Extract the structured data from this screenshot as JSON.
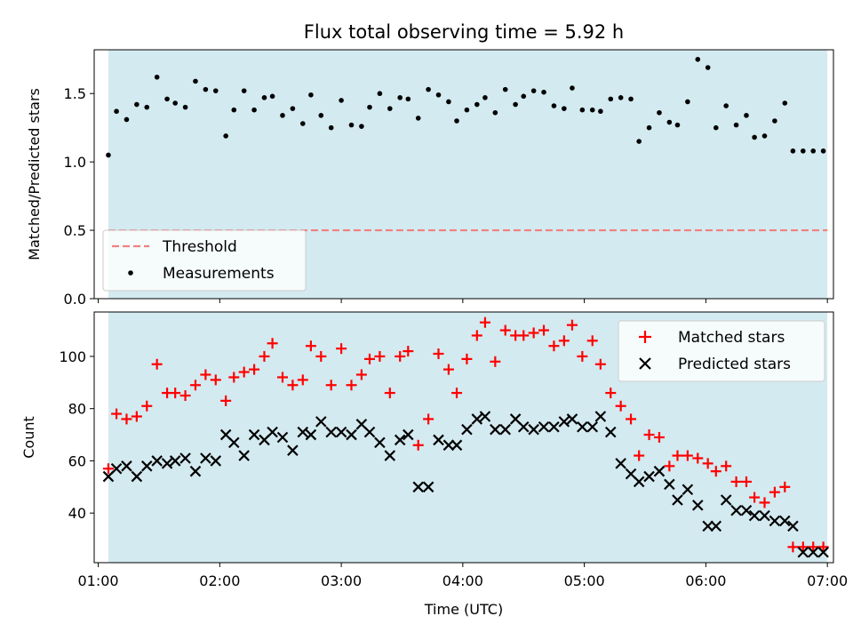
{
  "chart_data": [
    {
      "type": "scatter",
      "title": "Flux total observing time = 5.92 h",
      "xlabel": "",
      "ylabel": "Matched/Predicted stars",
      "xlim": [
        "00:58",
        "07:03"
      ],
      "ylim": [
        0.0,
        1.82
      ],
      "yticks": [
        0.0,
        0.5,
        1.0,
        1.5
      ],
      "xticks": [
        "01:00",
        "02:00",
        "03:00",
        "04:00",
        "05:00",
        "06:00",
        "07:00"
      ],
      "observing_window": {
        "start": "01:05",
        "end": "07:00",
        "color": "#d3eaf0"
      },
      "threshold": {
        "name": "Threshold",
        "value": 0.5,
        "color": "#f08080",
        "style": "dashed"
      },
      "legend": {
        "position": "lower-left",
        "entries": [
          "Threshold",
          "Measurements"
        ]
      },
      "series": [
        {
          "name": "Measurements",
          "marker": "dot",
          "color": "#000000",
          "x": [
            "01:05",
            "01:09",
            "01:14",
            "01:19",
            "01:24",
            "01:29",
            "01:34",
            "01:38",
            "01:43",
            "01:48",
            "01:53",
            "01:58",
            "02:03",
            "02:07",
            "02:12",
            "02:17",
            "02:22",
            "02:26",
            "02:31",
            "02:36",
            "02:41",
            "02:45",
            "02:50",
            "02:55",
            "03:00",
            "03:05",
            "03:10",
            "03:14",
            "03:19",
            "03:24",
            "03:29",
            "03:33",
            "03:38",
            "03:43",
            "03:48",
            "03:53",
            "03:57",
            "04:02",
            "04:07",
            "04:11",
            "04:16",
            "04:21",
            "04:26",
            "04:30",
            "04:35",
            "04:40",
            "04:45",
            "04:50",
            "04:54",
            "04:59",
            "05:04",
            "05:08",
            "05:13",
            "05:18",
            "05:23",
            "05:27",
            "05:32",
            "05:37",
            "05:42",
            "05:46",
            "05:51",
            "05:56",
            "06:01",
            "06:05",
            "06:10",
            "06:15",
            "06:20",
            "06:24",
            "06:29",
            "06:34",
            "06:39",
            "06:43",
            "06:48",
            "06:53",
            "06:58"
          ],
          "y": [
            1.05,
            1.37,
            1.31,
            1.42,
            1.4,
            1.62,
            1.46,
            1.43,
            1.4,
            1.59,
            1.53,
            1.52,
            1.19,
            1.38,
            1.52,
            1.38,
            1.47,
            1.48,
            1.34,
            1.39,
            1.28,
            1.49,
            1.34,
            1.25,
            1.45,
            1.27,
            1.26,
            1.4,
            1.5,
            1.39,
            1.47,
            1.46,
            1.32,
            1.53,
            1.49,
            1.44,
            1.3,
            1.38,
            1.42,
            1.47,
            1.36,
            1.53,
            1.42,
            1.48,
            1.52,
            1.51,
            1.41,
            1.39,
            1.54,
            1.38,
            1.38,
            1.37,
            1.46,
            1.47,
            1.46,
            1.15,
            1.25,
            1.36,
            1.29,
            1.27,
            1.44,
            1.75,
            1.69,
            1.25,
            1.41,
            1.27,
            1.34,
            1.18,
            1.19,
            1.3,
            1.43,
            1.08,
            1.08,
            1.08,
            1.08
          ]
        }
      ]
    },
    {
      "type": "scatter",
      "title": "",
      "xlabel": "Time (UTC)",
      "ylabel": "Count",
      "xlim": [
        "00:58",
        "07:03"
      ],
      "ylim": [
        21,
        117
      ],
      "yticks": [
        40,
        60,
        80,
        100
      ],
      "xticks": [
        "01:00",
        "02:00",
        "03:00",
        "04:00",
        "05:00",
        "06:00",
        "07:00"
      ],
      "observing_window": {
        "start": "01:05",
        "end": "07:00",
        "color": "#d3eaf0"
      },
      "legend": {
        "position": "upper-right",
        "entries": [
          "Matched stars",
          "Predicted stars"
        ]
      },
      "series": [
        {
          "name": "Matched stars",
          "marker": "plus",
          "color": "#ff0000",
          "x": [
            "01:05",
            "01:09",
            "01:14",
            "01:19",
            "01:24",
            "01:29",
            "01:34",
            "01:38",
            "01:43",
            "01:48",
            "01:53",
            "01:58",
            "02:03",
            "02:07",
            "02:12",
            "02:17",
            "02:22",
            "02:26",
            "02:31",
            "02:36",
            "02:41",
            "02:45",
            "02:50",
            "02:55",
            "03:00",
            "03:05",
            "03:10",
            "03:14",
            "03:19",
            "03:24",
            "03:29",
            "03:33",
            "03:38",
            "03:43",
            "03:48",
            "03:53",
            "03:57",
            "04:02",
            "04:07",
            "04:11",
            "04:16",
            "04:21",
            "04:26",
            "04:30",
            "04:35",
            "04:40",
            "04:45",
            "04:50",
            "04:54",
            "04:59",
            "05:04",
            "05:08",
            "05:13",
            "05:18",
            "05:23",
            "05:27",
            "05:32",
            "05:37",
            "05:42",
            "05:46",
            "05:51",
            "05:56",
            "06:01",
            "06:05",
            "06:10",
            "06:15",
            "06:20",
            "06:24",
            "06:29",
            "06:34",
            "06:39",
            "06:43",
            "06:48",
            "06:53",
            "06:58"
          ],
          "y": [
            57,
            78,
            76,
            77,
            81,
            97,
            86,
            86,
            85,
            89,
            93,
            91,
            83,
            92,
            94,
            95,
            100,
            105,
            92,
            89,
            91,
            104,
            100,
            89,
            103,
            89,
            93,
            99,
            100,
            86,
            100,
            102,
            66,
            76,
            101,
            95,
            86,
            99,
            108,
            113,
            98,
            110,
            108,
            108,
            109,
            110,
            104,
            106,
            112,
            100,
            106,
            97,
            86,
            81,
            76,
            62,
            70,
            69,
            58,
            62,
            62,
            61,
            59,
            56,
            58,
            52,
            52,
            46,
            44,
            48,
            50,
            27,
            27,
            27,
            27
          ]
        },
        {
          "name": "Predicted stars",
          "marker": "x",
          "color": "#000000",
          "x": [
            "01:05",
            "01:09",
            "01:14",
            "01:19",
            "01:24",
            "01:29",
            "01:34",
            "01:38",
            "01:43",
            "01:48",
            "01:53",
            "01:58",
            "02:03",
            "02:07",
            "02:12",
            "02:17",
            "02:22",
            "02:26",
            "02:31",
            "02:36",
            "02:41",
            "02:45",
            "02:50",
            "02:55",
            "03:00",
            "03:05",
            "03:10",
            "03:14",
            "03:19",
            "03:24",
            "03:29",
            "03:33",
            "03:38",
            "03:43",
            "03:48",
            "03:53",
            "03:57",
            "04:02",
            "04:07",
            "04:11",
            "04:16",
            "04:21",
            "04:26",
            "04:30",
            "04:35",
            "04:40",
            "04:45",
            "04:50",
            "04:54",
            "04:59",
            "05:04",
            "05:08",
            "05:13",
            "05:18",
            "05:23",
            "05:27",
            "05:32",
            "05:37",
            "05:42",
            "05:46",
            "05:51",
            "05:56",
            "06:01",
            "06:05",
            "06:10",
            "06:15",
            "06:20",
            "06:24",
            "06:29",
            "06:34",
            "06:39",
            "06:43",
            "06:48",
            "06:53",
            "06:58"
          ],
          "y": [
            54,
            57,
            58,
            54,
            58,
            60,
            59,
            60,
            61,
            56,
            61,
            60,
            70,
            67,
            62,
            70,
            68,
            71,
            69,
            64,
            71,
            70,
            75,
            71,
            71,
            70,
            74,
            71,
            67,
            62,
            68,
            70,
            50,
            50,
            68,
            66,
            66,
            72,
            76,
            77,
            72,
            72,
            76,
            73,
            72,
            73,
            73,
            75,
            76,
            73,
            73,
            77,
            71,
            59,
            55,
            52,
            54,
            56,
            51,
            45,
            49,
            43,
            35,
            35,
            45,
            41,
            41,
            39,
            39,
            37,
            37,
            35,
            25,
            25,
            25
          ]
        }
      ]
    }
  ]
}
